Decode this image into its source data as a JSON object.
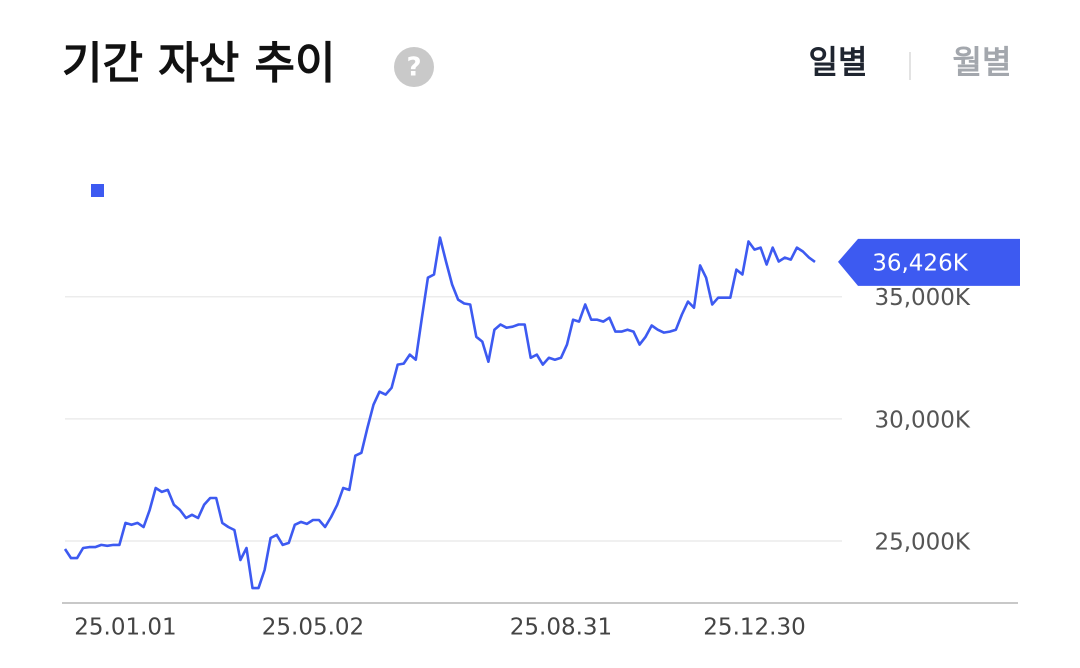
{
  "header": {
    "title": "기간 자산 추이",
    "help": "?",
    "tabs": [
      "일별",
      "월별"
    ]
  },
  "chart_data": {
    "type": "line",
    "categories": [
      null,
      null,
      null,
      null,
      null,
      null,
      null,
      null,
      null,
      null,
      "25.01.01",
      null,
      null,
      null,
      null,
      null,
      null,
      null,
      null,
      null,
      null,
      null,
      null,
      null,
      null,
      null,
      null,
      null,
      null,
      null,
      null,
      null,
      null,
      null,
      null,
      null,
      null,
      null,
      null,
      null,
      null,
      "25.05.02",
      null,
      null,
      null,
      null,
      null,
      null,
      null,
      null,
      null,
      null,
      null,
      null,
      null,
      null,
      null,
      null,
      null,
      null,
      null,
      null,
      null,
      null,
      null,
      null,
      null,
      null,
      null,
      null,
      null,
      null,
      null,
      null,
      null,
      null,
      null,
      null,
      null,
      null,
      null,
      null,
      "25.08.31",
      null,
      null,
      null,
      null,
      null,
      null,
      null,
      null,
      null,
      null,
      null,
      null,
      null,
      null,
      null,
      null,
      null,
      null,
      null,
      null,
      null,
      null,
      null,
      null,
      null,
      null,
      null,
      null,
      null,
      null,
      null,
      "25.12.30",
      null,
      null,
      null,
      null,
      null,
      null,
      null,
      null,
      null,
      null
    ],
    "series": [
      {
        "color": "#3d5af1",
        "values": [
          24670,
          24300,
          24300,
          24710,
          24750,
          24750,
          24840,
          24800,
          24840,
          24840,
          25740,
          25660,
          25740,
          25570,
          26270,
          27170,
          27010,
          27090,
          26480,
          26270,
          25940,
          26070,
          25940,
          26480,
          26760,
          26760,
          25740,
          25570,
          25450,
          24220,
          24710,
          23070,
          23070,
          23810,
          25120,
          25250,
          24840,
          24920,
          25660,
          25780,
          25700,
          25860,
          25860,
          25570,
          25980,
          26480,
          27170,
          27090,
          28490,
          28610,
          29630,
          30580,
          31110,
          30990,
          31270,
          32220,
          32260,
          32630,
          32420,
          34140,
          35780,
          35910,
          37420,
          36440,
          35500,
          34880,
          34720,
          34680,
          33360,
          33160,
          32340,
          33650,
          33860,
          33730,
          33770,
          33860,
          33860,
          32500,
          32630,
          32220,
          32500,
          32420,
          32500,
          33040,
          34060,
          33980,
          34680,
          34060,
          34060,
          33980,
          34140,
          33570,
          33570,
          33650,
          33570,
          33040,
          33360,
          33820,
          33650,
          33530,
          33570,
          33650,
          34270,
          34800,
          34550,
          36280,
          35780,
          34680,
          34960,
          34960,
          34960,
          36110,
          35910,
          37260,
          36930,
          37010,
          36320,
          37010,
          36440,
          36600,
          36520,
          37010,
          36850,
          36600,
          36426
        ]
      }
    ],
    "current": {
      "value": 36426,
      "label": "36,426K"
    },
    "ylim": [
      22460,
      39000
    ],
    "yticks": [
      {
        "value": 25000,
        "label": "25,000K"
      },
      {
        "value": 30000,
        "label": "30,000K"
      },
      {
        "value": 35000,
        "label": "35,000K"
      }
    ],
    "grid": true
  }
}
